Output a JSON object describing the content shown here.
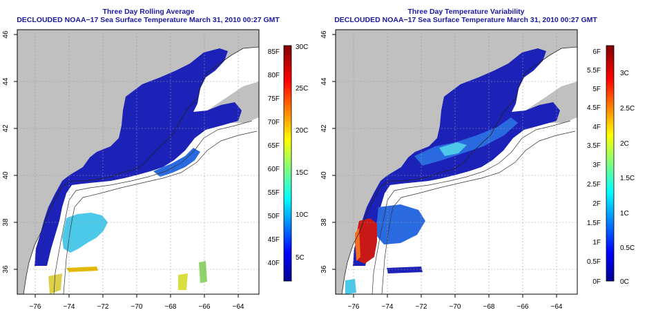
{
  "panels": [
    {
      "id": "left",
      "title": "Three Day Rolling Average",
      "subtitle": "DECLOUDED NOAA−17 Sea Surface Temperature March 31, 2010 00:27 GMT",
      "lat_ticks": [
        "36",
        "38",
        "40",
        "42",
        "44",
        "46"
      ],
      "lon_ticks": [
        "−76",
        "−74",
        "−72",
        "−70",
        "−68",
        "−66",
        "−64"
      ],
      "colorbar": {
        "left_labels": [
          "85F",
          "80F",
          "75F",
          "70F",
          "65F",
          "60F",
          "55F",
          "50F",
          "45F",
          "40F"
        ],
        "right_labels": [
          "30C",
          "25C",
          "20C",
          "15C",
          "10C",
          "5C"
        ]
      }
    },
    {
      "id": "right",
      "title": "Three Day Temperature Variability",
      "subtitle": "DECLOUDED NOAA−17 Sea Surface Temperature March 31, 2010 00:27 GMT",
      "lat_ticks": [
        "36",
        "38",
        "40",
        "42",
        "44",
        "46"
      ],
      "lon_ticks": [
        "−76",
        "−74",
        "−72",
        "−70",
        "−68",
        "−66",
        "−64"
      ],
      "colorbar": {
        "left_labels": [
          "6F",
          "5.5F",
          "5F",
          "4.5F",
          "4F",
          "3.5F",
          "3F",
          "2.5F",
          "2F",
          "1.5F",
          "1F",
          "0.5F",
          "0F"
        ],
        "right_labels": [
          "3C",
          "2.5C",
          "2C",
          "1.5C",
          "1C",
          "0.5C",
          "0C"
        ]
      }
    }
  ],
  "colors": {
    "title": "#1a1aa0",
    "land": "#c0c0c0",
    "ocean_blank": "#ffffff",
    "dark_blue": "#1c22b8",
    "mid_blue": "#2a6ae0",
    "cyan": "#4cc8e8",
    "red": "#c81818"
  }
}
